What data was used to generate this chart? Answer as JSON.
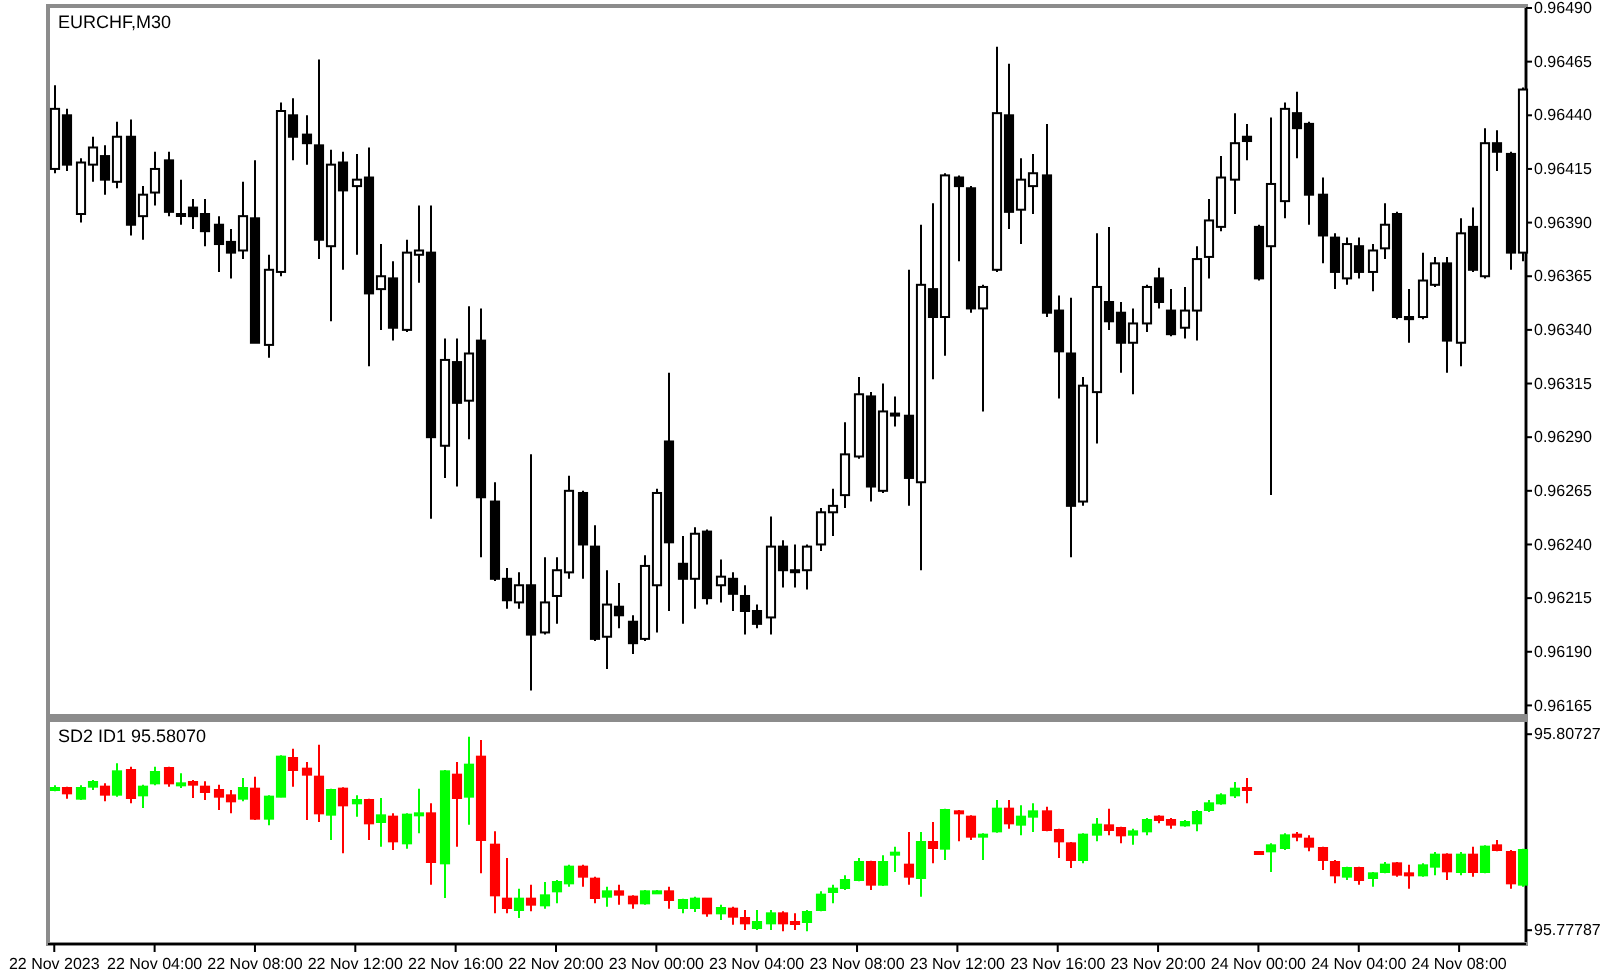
{
  "chart_data": [
    {
      "type": "candlestick",
      "title": "EURCHF,M30",
      "tick_labels": "y",
      "xlim": [
        "2023-11-21T23:45",
        "2023-11-24T10:40"
      ],
      "ylim": [
        0.96161,
        0.9649
      ],
      "yticks": [
        {
          "value": 0.9649,
          "label": "0.96490"
        },
        0.96465,
        {
          "value": 0.9644,
          "label": "0.96440"
        },
        0.96415,
        {
          "value": 0.9639,
          "label": "0.96390"
        },
        0.96365,
        {
          "value": 0.9634,
          "label": "0.96340"
        },
        0.96315,
        {
          "value": 0.9629,
          "label": "0.96290"
        },
        0.96265,
        {
          "value": 0.9624,
          "label": "0.96240"
        },
        0.96215,
        {
          "value": 0.9619,
          "label": "0.96190"
        },
        0.96165
      ],
      "x": [
        "2023-11-22T00:00",
        "2023-11-22T00:30",
        "2023-11-22T01:00",
        "2023-11-22T01:30",
        "2023-11-22T02:00",
        "2023-11-22T02:30",
        "2023-11-22T03:00",
        "2023-11-22T03:30",
        "2023-11-22T04:00",
        "2023-11-22T04:30",
        "2023-11-22T05:00",
        "2023-11-22T05:30",
        "2023-11-22T06:00",
        "2023-11-22T06:30",
        "2023-11-22T07:00",
        "2023-11-22T07:30",
        "2023-11-22T08:00",
        "2023-11-22T08:30",
        "2023-11-22T09:00",
        "2023-11-22T09:30",
        "2023-11-22T10:00",
        "2023-11-22T10:30",
        "2023-11-22T11:00",
        "2023-11-22T11:30",
        "2023-11-22T12:00",
        "2023-11-22T12:30",
        "2023-11-22T13:00",
        "2023-11-22T13:30",
        "2023-11-22T14:00",
        "2023-11-22T14:30",
        "2023-11-22T15:00",
        "2023-11-22T15:30",
        "2023-11-22T16:00",
        "2023-11-22T16:30",
        "2023-11-22T17:00",
        "2023-11-22T17:30",
        "2023-11-22T18:00",
        "2023-11-22T18:30",
        "2023-11-22T19:00",
        "2023-11-22T19:30",
        "2023-11-22T20:00",
        "2023-11-22T20:30",
        "2023-11-22T21:00",
        "2023-11-22T21:30",
        "2023-11-22T22:00",
        "2023-11-22T22:30",
        "2023-11-22T23:00",
        "2023-11-22T23:30",
        "2023-11-23T00:00",
        "2023-11-23T00:30",
        "2023-11-23T01:00",
        "2023-11-23T01:30",
        "2023-11-23T02:00",
        "2023-11-23T02:30",
        "2023-11-23T03:00",
        "2023-11-23T03:30",
        "2023-11-23T04:00",
        "2023-11-23T04:30",
        "2023-11-23T05:00",
        "2023-11-23T05:30",
        "2023-11-23T06:00",
        "2023-11-23T06:30",
        "2023-11-23T07:00",
        "2023-11-23T07:30",
        "2023-11-23T08:00",
        "2023-11-23T08:30",
        "2023-11-23T09:00",
        "2023-11-23T09:30",
        "2023-11-23T10:00",
        "2023-11-23T10:30",
        "2023-11-23T11:00",
        "2023-11-23T11:30",
        "2023-11-23T12:00",
        "2023-11-23T12:30",
        "2023-11-23T13:00",
        "2023-11-23T13:30",
        "2023-11-23T14:00",
        "2023-11-23T14:30",
        "2023-11-23T15:00",
        "2023-11-23T15:30",
        "2023-11-23T16:00",
        "2023-11-23T16:30",
        "2023-11-23T17:00",
        "2023-11-23T17:30",
        "2023-11-23T18:00",
        "2023-11-23T18:30",
        "2023-11-23T19:00",
        "2023-11-23T19:30",
        "2023-11-23T20:00",
        "2023-11-23T20:30",
        "2023-11-23T21:00",
        "2023-11-23T21:30",
        "2023-11-23T22:00",
        "2023-11-23T22:30",
        "2023-11-23T23:00",
        "2023-11-23T23:30",
        "2023-11-24T00:00",
        "2023-11-24T00:30",
        "2023-11-24T01:00",
        "2023-11-24T01:30",
        "2023-11-24T02:00",
        "2023-11-24T02:30",
        "2023-11-24T03:00",
        "2023-11-24T03:30",
        "2023-11-24T04:00",
        "2023-11-24T04:30",
        "2023-11-24T05:00",
        "2023-11-24T05:30",
        "2023-11-24T06:00",
        "2023-11-24T06:30",
        "2023-11-24T07:00",
        "2023-11-24T07:30",
        "2023-11-24T08:00",
        "2023-11-24T08:30",
        "2023-11-24T09:00",
        "2023-11-24T09:30",
        "2023-11-24T10:00",
        "2023-11-24T10:30"
      ],
      "ohlc": [
        [
          0.96415,
          0.96454,
          0.96413,
          0.96443
        ],
        [
          0.9644,
          0.96443,
          0.96414,
          0.96417
        ],
        [
          0.96394,
          0.9642,
          0.9639,
          0.96418
        ],
        [
          0.96417,
          0.9643,
          0.96409,
          0.96425
        ],
        [
          0.96421,
          0.96426,
          0.96403,
          0.9641
        ],
        [
          0.96409,
          0.96437,
          0.96406,
          0.9643
        ],
        [
          0.9643,
          0.96438,
          0.96384,
          0.96389
        ],
        [
          0.96393,
          0.96407,
          0.96382,
          0.96403
        ],
        [
          0.96404,
          0.96423,
          0.96398,
          0.96415
        ],
        [
          0.96419,
          0.96423,
          0.96393,
          0.96395
        ],
        [
          0.96394,
          0.9641,
          0.96389,
          0.96394
        ],
        [
          0.96397,
          0.96401,
          0.96387,
          0.96393
        ],
        [
          0.96394,
          0.96401,
          0.96379,
          0.96386
        ],
        [
          0.96389,
          0.96393,
          0.96367,
          0.9638
        ],
        [
          0.96381,
          0.96387,
          0.96364,
          0.96376
        ],
        [
          0.96377,
          0.96409,
          0.96373,
          0.96393
        ],
        [
          0.96392,
          0.96419,
          0.96334,
          0.96334
        ],
        [
          0.96333,
          0.96375,
          0.96327,
          0.96368
        ],
        [
          0.96367,
          0.96446,
          0.96365,
          0.96442
        ],
        [
          0.9644,
          0.96448,
          0.96419,
          0.9643
        ],
        [
          0.96431,
          0.9644,
          0.96417,
          0.96427
        ],
        [
          0.96426,
          0.96466,
          0.96373,
          0.96382
        ],
        [
          0.96379,
          0.96424,
          0.96344,
          0.96417
        ],
        [
          0.96418,
          0.96423,
          0.96368,
          0.96405
        ],
        [
          0.96407,
          0.96422,
          0.96375,
          0.9641
        ],
        [
          0.96411,
          0.96425,
          0.96323,
          0.96357
        ],
        [
          0.96359,
          0.9638,
          0.9634,
          0.96365
        ],
        [
          0.96364,
          0.96372,
          0.96335,
          0.96341
        ],
        [
          0.9634,
          0.96382,
          0.96339,
          0.96376
        ],
        [
          0.96375,
          0.96398,
          0.96362,
          0.96377
        ],
        [
          0.96376,
          0.96398,
          0.96252,
          0.9629
        ],
        [
          0.96286,
          0.96336,
          0.96271,
          0.96326
        ],
        [
          0.96325,
          0.96336,
          0.96267,
          0.96306
        ],
        [
          0.96307,
          0.96351,
          0.96289,
          0.96329
        ],
        [
          0.96335,
          0.9635,
          0.96234,
          0.96262
        ],
        [
          0.9626,
          0.96269,
          0.96223,
          0.96224
        ],
        [
          0.96224,
          0.96229,
          0.9621,
          0.96214
        ],
        [
          0.96213,
          0.96227,
          0.9621,
          0.96221
        ],
        [
          0.96221,
          0.96282,
          0.96172,
          0.96198
        ],
        [
          0.96199,
          0.96234,
          0.96198,
          0.96213
        ],
        [
          0.96216,
          0.96234,
          0.96203,
          0.96228
        ],
        [
          0.96227,
          0.96272,
          0.96224,
          0.96265
        ],
        [
          0.96264,
          0.96265,
          0.96224,
          0.9624
        ],
        [
          0.96239,
          0.96249,
          0.96195,
          0.96196
        ],
        [
          0.96197,
          0.96228,
          0.96182,
          0.96212
        ],
        [
          0.96211,
          0.96222,
          0.96201,
          0.96207
        ],
        [
          0.96204,
          0.96207,
          0.96189,
          0.96194
        ],
        [
          0.96196,
          0.96235,
          0.96195,
          0.9623
        ],
        [
          0.96221,
          0.96266,
          0.96199,
          0.96264
        ],
        [
          0.96288,
          0.9632,
          0.96209,
          0.96241
        ],
        [
          0.96231,
          0.96244,
          0.96203,
          0.96224
        ],
        [
          0.96224,
          0.96248,
          0.9621,
          0.96245
        ],
        [
          0.96246,
          0.96247,
          0.96212,
          0.96215
        ],
        [
          0.96221,
          0.96233,
          0.96213,
          0.96225
        ],
        [
          0.96224,
          0.96227,
          0.96209,
          0.96217
        ],
        [
          0.96216,
          0.96221,
          0.96198,
          0.96209
        ],
        [
          0.96209,
          0.96212,
          0.96201,
          0.96203
        ],
        [
          0.96206,
          0.96253,
          0.96198,
          0.96239
        ],
        [
          0.96239,
          0.96242,
          0.9622,
          0.96228
        ],
        [
          0.96228,
          0.9624,
          0.9622,
          0.96228
        ],
        [
          0.96228,
          0.9624,
          0.96219,
          0.96239
        ],
        [
          0.9624,
          0.96257,
          0.96237,
          0.96255
        ],
        [
          0.96255,
          0.96266,
          0.96244,
          0.96258
        ],
        [
          0.96263,
          0.96297,
          0.96257,
          0.96282
        ],
        [
          0.96281,
          0.96318,
          0.9628,
          0.9631
        ],
        [
          0.96309,
          0.96311,
          0.9626,
          0.96267
        ],
        [
          0.96265,
          0.96315,
          0.96264,
          0.96302
        ],
        [
          0.96301,
          0.96309,
          0.96295,
          0.96301
        ],
        [
          0.963,
          0.96368,
          0.96258,
          0.96271
        ],
        [
          0.96269,
          0.96389,
          0.96228,
          0.96361
        ],
        [
          0.96359,
          0.96399,
          0.96317,
          0.96346
        ],
        [
          0.96346,
          0.96413,
          0.96328,
          0.96412
        ],
        [
          0.96411,
          0.96412,
          0.96372,
          0.96407
        ],
        [
          0.96406,
          0.96407,
          0.96348,
          0.9635
        ],
        [
          0.9635,
          0.96361,
          0.96302,
          0.9636
        ],
        [
          0.96368,
          0.96472,
          0.96367,
          0.96441
        ],
        [
          0.9644,
          0.96464,
          0.96387,
          0.96395
        ],
        [
          0.96396,
          0.9642,
          0.9638,
          0.9641
        ],
        [
          0.96407,
          0.96422,
          0.96394,
          0.96413
        ],
        [
          0.96412,
          0.96436,
          0.96346,
          0.96348
        ],
        [
          0.96349,
          0.96356,
          0.96308,
          0.9633
        ],
        [
          0.96329,
          0.96355,
          0.96234,
          0.96258
        ],
        [
          0.9626,
          0.96318,
          0.96258,
          0.96314
        ],
        [
          0.96311,
          0.96385,
          0.96287,
          0.9636
        ],
        [
          0.96353,
          0.96388,
          0.9634,
          0.96344
        ],
        [
          0.96348,
          0.96353,
          0.9632,
          0.96334
        ],
        [
          0.96334,
          0.9635,
          0.9631,
          0.96343
        ],
        [
          0.96343,
          0.96361,
          0.96339,
          0.9636
        ],
        [
          0.96364,
          0.96369,
          0.9635,
          0.96353
        ],
        [
          0.96349,
          0.96359,
          0.96337,
          0.96338
        ],
        [
          0.96341,
          0.9636,
          0.96336,
          0.96349
        ],
        [
          0.96349,
          0.96379,
          0.96335,
          0.96373
        ],
        [
          0.96374,
          0.96401,
          0.96364,
          0.96391
        ],
        [
          0.96388,
          0.96421,
          0.96386,
          0.96411
        ],
        [
          0.9641,
          0.96441,
          0.96394,
          0.96427
        ],
        [
          0.9643,
          0.96436,
          0.96419,
          0.96428
        ],
        [
          0.96388,
          0.96389,
          0.96363,
          0.96364
        ],
        [
          0.96379,
          0.96439,
          0.96263,
          0.96408
        ],
        [
          0.964,
          0.96446,
          0.96392,
          0.96443
        ],
        [
          0.96441,
          0.96451,
          0.9642,
          0.96434
        ],
        [
          0.96436,
          0.96437,
          0.96389,
          0.96403
        ],
        [
          0.96403,
          0.96411,
          0.96371,
          0.96384
        ],
        [
          0.96383,
          0.96385,
          0.96359,
          0.96367
        ],
        [
          0.96364,
          0.96383,
          0.96361,
          0.9638
        ],
        [
          0.96379,
          0.96383,
          0.96364,
          0.96367
        ],
        [
          0.96367,
          0.9638,
          0.96358,
          0.96377
        ],
        [
          0.96378,
          0.96399,
          0.96373,
          0.96389
        ],
        [
          0.96394,
          0.96395,
          0.96345,
          0.96346
        ],
        [
          0.96346,
          0.96359,
          0.96334,
          0.96345
        ],
        [
          0.96346,
          0.96376,
          0.96345,
          0.96363
        ],
        [
          0.96361,
          0.96374,
          0.9636,
          0.96371
        ],
        [
          0.96371,
          0.96374,
          0.9632,
          0.96335
        ],
        [
          0.96334,
          0.96392,
          0.96323,
          0.96385
        ],
        [
          0.96388,
          0.96397,
          0.96367,
          0.96368
        ],
        [
          0.96365,
          0.96434,
          0.96364,
          0.96427
        ],
        [
          0.96427,
          0.96433,
          0.96414,
          0.96423
        ],
        [
          0.96422,
          0.96423,
          0.96368,
          0.96376
        ],
        [
          0.96376,
          0.96453,
          0.96372,
          0.96452
        ]
      ],
      "colors": [
        "#ffffff",
        "#000000",
        "#ffffff",
        "#ffffff",
        "#000000",
        "#ffffff",
        "#000000",
        "#ffffff",
        "#ffffff",
        "#000000",
        "#000000",
        "#000000",
        "#000000",
        "#000000",
        "#000000",
        "#ffffff",
        "#000000",
        "#ffffff",
        "#ffffff",
        "#000000",
        "#000000",
        "#000000",
        "#ffffff",
        "#000000",
        "#ffffff",
        "#000000",
        "#ffffff",
        "#000000",
        "#ffffff",
        "#ffffff",
        "#000000",
        "#ffffff",
        "#000000",
        "#ffffff",
        "#000000",
        "#000000",
        "#000000",
        "#ffffff",
        "#000000",
        "#ffffff",
        "#ffffff",
        "#ffffff",
        "#000000",
        "#000000",
        "#ffffff",
        "#000000",
        "#000000",
        "#ffffff",
        "#ffffff",
        "#000000",
        "#000000",
        "#ffffff",
        "#000000",
        "#ffffff",
        "#000000",
        "#000000",
        "#000000",
        "#ffffff",
        "#000000",
        "#000000",
        "#ffffff",
        "#ffffff",
        "#ffffff",
        "#ffffff",
        "#ffffff",
        "#000000",
        "#ffffff",
        "#000000",
        "#000000",
        "#ffffff",
        "#000000",
        "#ffffff",
        "#000000",
        "#000000",
        "#ffffff",
        "#ffffff",
        "#000000",
        "#ffffff",
        "#ffffff",
        "#000000",
        "#000000",
        "#000000",
        "#ffffff",
        "#ffffff",
        "#000000",
        "#000000",
        "#ffffff",
        "#ffffff",
        "#000000",
        "#000000",
        "#ffffff",
        "#ffffff",
        "#ffffff",
        "#ffffff",
        "#ffffff",
        "#000000",
        "#000000",
        "#ffffff",
        "#ffffff",
        "#000000",
        "#000000",
        "#000000",
        "#000000",
        "#ffffff",
        "#000000",
        "#ffffff",
        "#ffffff",
        "#000000",
        "#000000",
        "#ffffff",
        "#ffffff",
        "#000000",
        "#ffffff",
        "#000000",
        "#ffffff",
        "#000000",
        "#000000",
        "#ffffff"
      ]
    },
    {
      "type": "candlestick",
      "title": "SD2 ID1 95.58070",
      "xlim": [
        "2023-11-21T23:45",
        "2023-11-24T10:40"
      ],
      "xticks": [
        {
          "value": "2023-11-22T00:00",
          "label": "22 Nov 2023"
        },
        {
          "value": "2023-11-22T04:00",
          "label": "22 Nov 04:00"
        },
        {
          "value": "2023-11-22T08:00",
          "label": "22 Nov 08:00"
        },
        {
          "value": "2023-11-22T12:00",
          "label": "22 Nov 12:00"
        },
        {
          "value": "2023-11-22T16:00",
          "label": "22 Nov 16:00"
        },
        {
          "value": "2023-11-22T20:00",
          "label": "22 Nov 20:00"
        },
        {
          "value": "2023-11-23T00:00",
          "label": "23 Nov 00:00"
        },
        {
          "value": "2023-11-23T04:00",
          "label": "23 Nov 04:00"
        },
        {
          "value": "2023-11-23T08:00",
          "label": "23 Nov 08:00"
        },
        {
          "value": "2023-11-23T12:00",
          "label": "23 Nov 12:00"
        },
        {
          "value": "2023-11-23T16:00",
          "label": "23 Nov 16:00"
        },
        {
          "value": "2023-11-23T20:00",
          "label": "23 Nov 20:00"
        },
        {
          "value": "2023-11-24T00:00",
          "label": "24 Nov 00:00"
        },
        {
          "value": "2023-11-24T04:00",
          "label": "24 Nov 04:00"
        },
        {
          "value": "2023-11-24T08:00",
          "label": "24 Nov 08:00"
        }
      ],
      "ylim": [
        95.7761,
        95.8091
      ],
      "yticks": [
        95.80727,
        95.77787
      ],
      "x": [
        "2023-11-22T00:00",
        "2023-11-22T00:30",
        "2023-11-22T01:00",
        "2023-11-22T01:30",
        "2023-11-22T02:00",
        "2023-11-22T02:30",
        "2023-11-22T03:00",
        "2023-11-22T03:30",
        "2023-11-22T04:00",
        "2023-11-22T04:30",
        "2023-11-22T05:00",
        "2023-11-22T05:30",
        "2023-11-22T06:00",
        "2023-11-22T06:30",
        "2023-11-22T07:00",
        "2023-11-22T07:30",
        "2023-11-22T08:00",
        "2023-11-22T08:30",
        "2023-11-22T09:00",
        "2023-11-22T09:30",
        "2023-11-22T10:00",
        "2023-11-22T10:30",
        "2023-11-22T11:00",
        "2023-11-22T11:30",
        "2023-11-22T12:00",
        "2023-11-22T12:30",
        "2023-11-22T13:00",
        "2023-11-22T13:30",
        "2023-11-22T14:00",
        "2023-11-22T14:30",
        "2023-11-22T15:00",
        "2023-11-22T15:30",
        "2023-11-22T16:00",
        "2023-11-22T16:30",
        "2023-11-22T17:00",
        "2023-11-22T17:30",
        "2023-11-22T18:00",
        "2023-11-22T18:30",
        "2023-11-22T19:00",
        "2023-11-22T19:30",
        "2023-11-22T20:00",
        "2023-11-22T20:30",
        "2023-11-22T21:00",
        "2023-11-22T21:30",
        "2023-11-22T22:00",
        "2023-11-22T22:30",
        "2023-11-22T23:00",
        "2023-11-22T23:30",
        "2023-11-23T00:00",
        "2023-11-23T00:30",
        "2023-11-23T01:00",
        "2023-11-23T01:30",
        "2023-11-23T02:00",
        "2023-11-23T02:30",
        "2023-11-23T03:00",
        "2023-11-23T03:30",
        "2023-11-23T04:00",
        "2023-11-23T04:30",
        "2023-11-23T05:00",
        "2023-11-23T05:30",
        "2023-11-23T06:00",
        "2023-11-23T06:30",
        "2023-11-23T07:00",
        "2023-11-23T07:30",
        "2023-11-23T08:00",
        "2023-11-23T08:30",
        "2023-11-23T09:00",
        "2023-11-23T09:30",
        "2023-11-23T10:00",
        "2023-11-23T10:30",
        "2023-11-23T11:00",
        "2023-11-23T11:30",
        "2023-11-23T12:00",
        "2023-11-23T12:30",
        "2023-11-23T13:00",
        "2023-11-23T13:30",
        "2023-11-23T14:00",
        "2023-11-23T14:30",
        "2023-11-23T15:00",
        "2023-11-23T15:30",
        "2023-11-23T16:00",
        "2023-11-23T16:30",
        "2023-11-23T17:00",
        "2023-11-23T17:30",
        "2023-11-23T18:00",
        "2023-11-23T18:30",
        "2023-11-23T19:00",
        "2023-11-23T19:30",
        "2023-11-23T20:00",
        "2023-11-23T20:30",
        "2023-11-23T21:00",
        "2023-11-23T21:30",
        "2023-11-23T22:00",
        "2023-11-23T22:30",
        "2023-11-23T23:00",
        "2023-11-23T23:30",
        "2023-11-24T00:00",
        "2023-11-24T00:30",
        "2023-11-24T01:00",
        "2023-11-24T01:30",
        "2023-11-24T02:00",
        "2023-11-24T02:30",
        "2023-11-24T03:00",
        "2023-11-24T03:30",
        "2023-11-24T04:00",
        "2023-11-24T04:30",
        "2023-11-24T05:00",
        "2023-11-24T05:30",
        "2023-11-24T06:00",
        "2023-11-24T06:30",
        "2023-11-24T07:00",
        "2023-11-24T07:30",
        "2023-11-24T08:00",
        "2023-11-24T08:30",
        "2023-11-24T09:00",
        "2023-11-24T09:30",
        "2023-11-24T10:00",
        "2023-11-24T10:30"
      ],
      "ohlc": [
        [
          95.7989,
          95.7996,
          95.7987,
          95.7992
        ],
        [
          95.7992,
          95.7994,
          95.7976,
          95.7984
        ],
        [
          95.7976,
          95.7996,
          95.7974,
          95.7992
        ],
        [
          95.7994,
          95.8004,
          95.7989,
          95.8001
        ],
        [
          95.7994,
          95.7999,
          95.7972,
          95.7982
        ],
        [
          95.7982,
          95.8029,
          95.7979,
          95.8017
        ],
        [
          95.8019,
          95.8024,
          95.7969,
          95.7977
        ],
        [
          95.7981,
          95.7997,
          95.7962,
          95.7994
        ],
        [
          95.7999,
          95.8024,
          95.7996,
          95.8016
        ],
        [
          95.8022,
          95.8024,
          95.7994,
          95.7999
        ],
        [
          95.7997,
          95.8014,
          95.7992,
          95.7999
        ],
        [
          95.8001,
          95.8004,
          95.7977,
          95.7997
        ],
        [
          95.7994,
          95.8002,
          95.7974,
          95.7986
        ],
        [
          95.7989,
          95.7997,
          95.7959,
          95.7979
        ],
        [
          95.7981,
          95.7989,
          95.7954,
          95.7972
        ],
        [
          95.7976,
          95.8007,
          95.7972,
          95.7992
        ],
        [
          95.7991,
          95.8009,
          95.7944,
          95.7946
        ],
        [
          95.7946,
          95.7981,
          95.7936,
          95.7979
        ],
        [
          95.7979,
          95.8041,
          95.7978,
          95.8039
        ],
        [
          95.8037,
          95.8051,
          95.7994,
          95.8019
        ],
        [
          95.8021,
          95.8031,
          95.7944,
          95.8012
        ],
        [
          95.8009,
          95.8057,
          95.7941,
          95.7954
        ],
        [
          95.7952,
          95.7991,
          95.7914,
          95.7989
        ],
        [
          95.7991,
          95.7993,
          95.7894,
          95.7966
        ],
        [
          95.7969,
          95.7981,
          95.7949,
          95.7974
        ],
        [
          95.7974,
          95.7976,
          95.7914,
          95.7939
        ],
        [
          95.7941,
          95.7977,
          95.7904,
          95.7951
        ],
        [
          95.7949,
          95.7954,
          95.7899,
          95.7912
        ],
        [
          95.7909,
          95.7954,
          95.7901,
          95.7952
        ],
        [
          95.7952,
          95.7991,
          95.7924,
          95.7954
        ],
        [
          95.7954,
          95.7969,
          95.7847,
          95.7881
        ],
        [
          95.7879,
          95.8019,
          95.7827,
          95.8017
        ],
        [
          95.8012,
          95.8031,
          95.7904,
          95.7977
        ],
        [
          95.7979,
          95.8069,
          95.7937,
          95.8027
        ],
        [
          95.8039,
          95.8064,
          95.7864,
          95.7914
        ],
        [
          95.7907,
          95.7927,
          95.7804,
          95.7831
        ],
        [
          95.7826,
          95.7887,
          95.7804,
          95.7812
        ],
        [
          95.7809,
          95.7841,
          95.7797,
          95.7826
        ],
        [
          95.7826,
          95.7847,
          95.7807,
          95.7817
        ],
        [
          95.7816,
          95.7851,
          95.7811,
          95.7831
        ],
        [
          95.7837,
          95.7854,
          95.7819,
          95.7851
        ],
        [
          95.7849,
          95.7877,
          95.7844,
          95.7874
        ],
        [
          95.7874,
          95.7877,
          95.7844,
          95.7859
        ],
        [
          95.7856,
          95.7859,
          95.7819,
          95.7827
        ],
        [
          95.7829,
          95.7844,
          95.7814,
          95.7837
        ],
        [
          95.7837,
          95.7847,
          95.7817,
          95.7832
        ],
        [
          95.7829,
          95.7831,
          95.7811,
          95.7819
        ],
        [
          95.7819,
          95.7839,
          95.7817,
          95.7837
        ],
        [
          95.7836,
          95.7839,
          95.7834,
          95.7837
        ],
        [
          95.7837,
          95.7844,
          95.7811,
          95.7824
        ],
        [
          95.7812,
          95.7826,
          95.7804,
          95.7824
        ],
        [
          95.7812,
          95.7829,
          95.7806,
          95.7826
        ],
        [
          95.7826,
          95.7827,
          95.7799,
          95.7804
        ],
        [
          95.7804,
          95.7817,
          95.7794,
          95.7812
        ],
        [
          95.7811,
          95.7814,
          95.7787,
          95.7799
        ],
        [
          95.7797,
          95.7809,
          95.7779,
          95.7789
        ],
        [
          95.7782,
          95.7809,
          95.7779,
          95.7791
        ],
        [
          95.7789,
          95.7809,
          95.7779,
          95.7804
        ],
        [
          95.7804,
          95.7807,
          95.7777,
          95.7789
        ],
        [
          95.7791,
          95.7804,
          95.7779,
          95.7789
        ],
        [
          95.7791,
          95.7809,
          95.7777,
          95.7806
        ],
        [
          95.7809,
          95.7837,
          95.7807,
          95.7832
        ],
        [
          95.7836,
          95.7847,
          95.7819,
          95.7841
        ],
        [
          95.7842,
          95.7861,
          95.7839,
          95.7854
        ],
        [
          95.7854,
          95.7887,
          95.7852,
          95.7881
        ],
        [
          95.7881,
          95.7883,
          95.7839,
          95.7847
        ],
        [
          95.7847,
          95.7891,
          95.7845,
          95.7881
        ],
        [
          95.7893,
          95.7904,
          95.7866,
          95.7895
        ],
        [
          95.7877,
          95.7926,
          95.7847,
          95.7859
        ],
        [
          95.7857,
          95.7926,
          95.7829,
          95.7911
        ],
        [
          95.7911,
          95.7941,
          95.7879,
          95.7902
        ],
        [
          95.7901,
          95.7961,
          95.7884,
          95.7959
        ],
        [
          95.7957,
          95.7959,
          95.7912,
          95.7954
        ],
        [
          95.7949,
          95.7951,
          95.7914,
          95.7919
        ],
        [
          95.7921,
          95.7924,
          95.7884,
          95.7922
        ],
        [
          95.7927,
          95.7974,
          95.7925,
          95.7961
        ],
        [
          95.7961,
          95.7974,
          95.7931,
          95.7939
        ],
        [
          95.7937,
          95.7966,
          95.7921,
          95.7949
        ],
        [
          95.7949,
          95.7969,
          95.7926,
          95.7957
        ],
        [
          95.7957,
          95.7964,
          95.7927,
          95.7929
        ],
        [
          95.7929,
          95.7931,
          95.7887,
          95.7912
        ],
        [
          95.7909,
          95.7911,
          95.7872,
          95.7884
        ],
        [
          95.7884,
          95.7924,
          95.7879,
          95.7922
        ],
        [
          95.7922,
          95.7947,
          95.7912,
          95.7937
        ],
        [
          95.7936,
          95.7961,
          95.7921,
          95.7929
        ],
        [
          95.7932,
          95.7934,
          95.7909,
          95.7921
        ],
        [
          95.7922,
          95.7931,
          95.7907,
          95.7927
        ],
        [
          95.7927,
          95.7947,
          95.7921,
          95.7944
        ],
        [
          95.7949,
          95.7951,
          95.7939,
          95.7944
        ],
        [
          95.7944,
          95.7947,
          95.7931,
          95.7937
        ],
        [
          95.7936,
          95.7944,
          95.7934,
          95.7941
        ],
        [
          95.7939,
          95.7959,
          95.7927,
          95.7956
        ],
        [
          95.7959,
          95.7974,
          95.7956,
          95.7969
        ],
        [
          95.7969,
          95.7984,
          95.7967,
          95.7981
        ],
        [
          95.7981,
          95.8001,
          95.7977,
          95.7991
        ],
        [
          95.7992,
          95.8007,
          95.7969,
          95.7991
        ],
        [
          95.7896,
          95.7897,
          95.7894,
          95.7895
        ],
        [
          95.7897,
          95.7909,
          95.7866,
          95.7906
        ],
        [
          95.7902,
          95.7924,
          95.7899,
          95.7921
        ],
        [
          95.7922,
          95.7926,
          95.7912,
          95.7919
        ],
        [
          95.7916,
          95.7921,
          95.7897,
          95.7904
        ],
        [
          95.7902,
          95.7904,
          95.7869,
          95.7884
        ],
        [
          95.7881,
          95.7884,
          95.7849,
          95.7861
        ],
        [
          95.7859,
          95.7874,
          95.7854,
          95.7872
        ],
        [
          95.7872,
          95.7874,
          95.7847,
          95.7854
        ],
        [
          95.7857,
          95.7866,
          95.7844,
          95.7864
        ],
        [
          95.7866,
          95.7881,
          95.7864,
          95.7877
        ],
        [
          95.7879,
          95.7881,
          95.7859,
          95.7862
        ],
        [
          95.7864,
          95.7877,
          95.7841,
          95.7862
        ],
        [
          95.7861,
          95.7879,
          95.7859,
          95.7876
        ],
        [
          95.7874,
          95.7896,
          95.7861,
          95.7892
        ],
        [
          95.7892,
          95.7894,
          95.7854,
          95.7867
        ],
        [
          95.7866,
          95.7896,
          95.7861,
          95.7892
        ],
        [
          95.7892,
          95.7904,
          95.7859,
          95.7866
        ],
        [
          95.7866,
          95.7906,
          95.7864,
          95.7904
        ],
        [
          95.7906,
          95.7914,
          95.7897,
          95.7899
        ],
        [
          95.7896,
          95.7899,
          95.7841,
          95.7849
        ],
        [
          95.7847,
          95.7901,
          95.7844,
          95.7899
        ]
      ],
      "colors": [
        "#00ff00",
        "#ff0000",
        "#00ff00",
        "#00ff00",
        "#ff0000",
        "#00ff00",
        "#ff0000",
        "#00ff00",
        "#00ff00",
        "#ff0000",
        "#00ff00",
        "#ff0000",
        "#ff0000",
        "#ff0000",
        "#ff0000",
        "#00ff00",
        "#ff0000",
        "#00ff00",
        "#00ff00",
        "#ff0000",
        "#ff0000",
        "#ff0000",
        "#00ff00",
        "#ff0000",
        "#00ff00",
        "#ff0000",
        "#00ff00",
        "#ff0000",
        "#00ff00",
        "#00ff00",
        "#ff0000",
        "#00ff00",
        "#ff0000",
        "#00ff00",
        "#ff0000",
        "#ff0000",
        "#ff0000",
        "#00ff00",
        "#ff0000",
        "#00ff00",
        "#00ff00",
        "#00ff00",
        "#ff0000",
        "#ff0000",
        "#00ff00",
        "#ff0000",
        "#ff0000",
        "#00ff00",
        "#00ff00",
        "#ff0000",
        "#00ff00",
        "#00ff00",
        "#ff0000",
        "#00ff00",
        "#ff0000",
        "#ff0000",
        "#00ff00",
        "#00ff00",
        "#ff0000",
        "#ff0000",
        "#00ff00",
        "#00ff00",
        "#00ff00",
        "#00ff00",
        "#00ff00",
        "#ff0000",
        "#00ff00",
        "#00ff00",
        "#ff0000",
        "#00ff00",
        "#ff0000",
        "#00ff00",
        "#ff0000",
        "#ff0000",
        "#00ff00",
        "#00ff00",
        "#ff0000",
        "#00ff00",
        "#00ff00",
        "#ff0000",
        "#ff0000",
        "#ff0000",
        "#00ff00",
        "#00ff00",
        "#ff0000",
        "#ff0000",
        "#00ff00",
        "#00ff00",
        "#ff0000",
        "#ff0000",
        "#00ff00",
        "#00ff00",
        "#00ff00",
        "#00ff00",
        "#00ff00",
        "#ff0000",
        "#ff0000",
        "#00ff00",
        "#00ff00",
        "#ff0000",
        "#ff0000",
        "#ff0000",
        "#ff0000",
        "#00ff00",
        "#ff0000",
        "#00ff00",
        "#00ff00",
        "#ff0000",
        "#ff0000",
        "#00ff00",
        "#00ff00",
        "#ff0000",
        "#00ff00",
        "#ff0000",
        "#00ff00",
        "#ff0000",
        "#ff0000",
        "#00ff00"
      ]
    }
  ]
}
